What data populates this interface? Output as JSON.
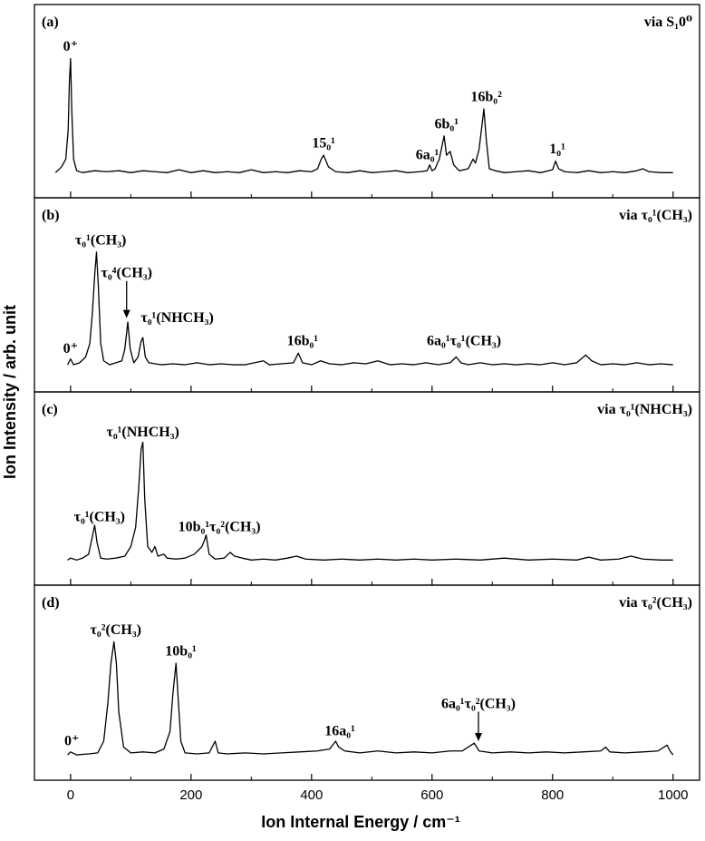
{
  "chart_data": {
    "type": "line",
    "xlabel": "Ion Internal Energy / cm⁻¹",
    "ylabel": "Ion Intensity / arb. unit",
    "xlim": [
      -60,
      1044
    ],
    "xticks": [
      0,
      200,
      400,
      600,
      800,
      1000
    ],
    "xminorticks": [
      100,
      300,
      500,
      700,
      900
    ],
    "color": "#000000",
    "panels": [
      {
        "label": "(a)",
        "note": "via S₁0⁰",
        "ylim": [
          0,
          1
        ],
        "x": [
          -25,
          -15,
          -8,
          -4,
          -2,
          0,
          2,
          5,
          10,
          20,
          40,
          60,
          80,
          100,
          120,
          140,
          160,
          180,
          200,
          220,
          240,
          260,
          280,
          300,
          320,
          340,
          360,
          380,
          400,
          410,
          416,
          420,
          428,
          440,
          460,
          480,
          500,
          520,
          540,
          560,
          580,
          592,
          596,
          600,
          605,
          612,
          616,
          620,
          624,
          630,
          636,
          645,
          660,
          668,
          672,
          678,
          683,
          686,
          690,
          695,
          705,
          720,
          740,
          760,
          780,
          800,
          805,
          810,
          820,
          840,
          860,
          880,
          900,
          920,
          940,
          950,
          960,
          980,
          1000
        ],
        "values": [
          0.13,
          0.16,
          0.2,
          0.35,
          0.6,
          0.72,
          0.45,
          0.2,
          0.14,
          0.13,
          0.14,
          0.135,
          0.14,
          0.13,
          0.14,
          0.135,
          0.13,
          0.145,
          0.13,
          0.14,
          0.13,
          0.135,
          0.13,
          0.145,
          0.13,
          0.135,
          0.13,
          0.14,
          0.135,
          0.15,
          0.2,
          0.22,
          0.16,
          0.135,
          0.13,
          0.14,
          0.13,
          0.135,
          0.14,
          0.13,
          0.135,
          0.14,
          0.17,
          0.14,
          0.15,
          0.2,
          0.26,
          0.32,
          0.22,
          0.24,
          0.17,
          0.14,
          0.15,
          0.2,
          0.18,
          0.25,
          0.38,
          0.46,
          0.3,
          0.15,
          0.14,
          0.13,
          0.135,
          0.14,
          0.13,
          0.145,
          0.19,
          0.15,
          0.135,
          0.13,
          0.14,
          0.13,
          0.135,
          0.13,
          0.14,
          0.15,
          0.135,
          0.13,
          0.13
        ],
        "annotations": [
          {
            "text": "0⁺",
            "x": 0,
            "y": 0.76
          },
          {
            "text": "15₀¹",
            "x": 420,
            "y": 0.26
          },
          {
            "text": "6a₀¹",
            "x": 592,
            "y": 0.2
          },
          {
            "text": "6b₀¹",
            "x": 624,
            "y": 0.36
          },
          {
            "text": "16b₀²",
            "x": 690,
            "y": 0.5
          },
          {
            "text": "1₀¹",
            "x": 808,
            "y": 0.23
          }
        ]
      },
      {
        "label": "(b)",
        "note": "via τ₀¹(CH₃)",
        "ylim": [
          0,
          1
        ],
        "x": [
          -5,
          0,
          5,
          15,
          25,
          32,
          36,
          40,
          43,
          46,
          50,
          55,
          65,
          75,
          85,
          90,
          95,
          99,
          105,
          112,
          117,
          120,
          124,
          130,
          150,
          170,
          190,
          210,
          230,
          250,
          270,
          290,
          320,
          330,
          350,
          370,
          378,
          385,
          400,
          415,
          430,
          450,
          470,
          490,
          510,
          530,
          550,
          570,
          590,
          610,
          630,
          640,
          648,
          660,
          680,
          700,
          720,
          740,
          760,
          780,
          800,
          820,
          840,
          855,
          865,
          880,
          900,
          920,
          940,
          960,
          980,
          1000
        ],
        "values": [
          0.14,
          0.17,
          0.14,
          0.15,
          0.18,
          0.25,
          0.4,
          0.6,
          0.72,
          0.55,
          0.25,
          0.16,
          0.14,
          0.15,
          0.16,
          0.22,
          0.36,
          0.22,
          0.15,
          0.18,
          0.26,
          0.28,
          0.18,
          0.15,
          0.14,
          0.145,
          0.14,
          0.15,
          0.14,
          0.145,
          0.14,
          0.14,
          0.16,
          0.14,
          0.145,
          0.15,
          0.2,
          0.15,
          0.14,
          0.16,
          0.145,
          0.14,
          0.15,
          0.145,
          0.16,
          0.14,
          0.145,
          0.14,
          0.15,
          0.14,
          0.15,
          0.18,
          0.15,
          0.14,
          0.15,
          0.14,
          0.145,
          0.14,
          0.145,
          0.14,
          0.15,
          0.14,
          0.15,
          0.19,
          0.16,
          0.14,
          0.145,
          0.14,
          0.15,
          0.14,
          0.145,
          0.14
        ],
        "annotations": [
          {
            "text": "τ₀¹(CH₃)",
            "x": 50,
            "y": 0.76
          },
          {
            "text": "τ₀⁴(CH₃)",
            "x": 93,
            "y": 0.59,
            "arrow_to": 0.38
          },
          {
            "text": "τ₀¹(NHCH₃)",
            "x": 177,
            "y": 0.36
          },
          {
            "text": "0⁺",
            "x": 0,
            "y": 0.2
          },
          {
            "text": "16b₀¹",
            "x": 385,
            "y": 0.24
          },
          {
            "text": "6a₀¹τ₀¹(CH₃)",
            "x": 653,
            "y": 0.24
          }
        ]
      },
      {
        "label": "(c)",
        "note": "via τ₀¹(NHCH₃)",
        "ylim": [
          0,
          1
        ],
        "x": [
          -5,
          0,
          10,
          20,
          30,
          36,
          40,
          44,
          50,
          60,
          75,
          90,
          100,
          108,
          113,
          117,
          120,
          123,
          128,
          135,
          140,
          145,
          155,
          160,
          175,
          190,
          205,
          212,
          218,
          222,
          225,
          230,
          240,
          255,
          265,
          272,
          285,
          300,
          320,
          340,
          360,
          375,
          390,
          420,
          450,
          480,
          510,
          540,
          570,
          600,
          640,
          680,
          720,
          760,
          800,
          840,
          860,
          880,
          910,
          930,
          950,
          980,
          1000
        ],
        "values": [
          0.13,
          0.14,
          0.13,
          0.14,
          0.16,
          0.25,
          0.31,
          0.22,
          0.14,
          0.135,
          0.14,
          0.15,
          0.2,
          0.3,
          0.5,
          0.7,
          0.74,
          0.45,
          0.2,
          0.17,
          0.2,
          0.15,
          0.16,
          0.14,
          0.135,
          0.14,
          0.16,
          0.18,
          0.2,
          0.23,
          0.26,
          0.16,
          0.135,
          0.14,
          0.17,
          0.15,
          0.14,
          0.13,
          0.135,
          0.13,
          0.14,
          0.15,
          0.135,
          0.13,
          0.135,
          0.13,
          0.135,
          0.13,
          0.135,
          0.13,
          0.135,
          0.13,
          0.14,
          0.13,
          0.135,
          0.13,
          0.145,
          0.13,
          0.135,
          0.15,
          0.135,
          0.13,
          0.13
        ],
        "annotations": [
          {
            "text": "τ₀¹(NHCH₃)",
            "x": 120,
            "y": 0.77
          },
          {
            "text": "τ₀¹(CH₃)",
            "x": 48,
            "y": 0.33
          },
          {
            "text": "10b₀¹τ₀²(CH₃)",
            "x": 247,
            "y": 0.28
          }
        ]
      },
      {
        "label": "(d)",
        "note": "via τ₀²(CH₃)",
        "ylim": [
          0,
          1
        ],
        "x": [
          -5,
          0,
          10,
          30,
          45,
          55,
          62,
          67,
          72,
          76,
          80,
          88,
          100,
          120,
          140,
          155,
          165,
          170,
          175,
          178,
          183,
          190,
          210,
          230,
          240,
          245,
          260,
          290,
          320,
          350,
          380,
          410,
          430,
          440,
          445,
          455,
          480,
          510,
          540,
          570,
          600,
          630,
          650,
          660,
          670,
          678,
          700,
          730,
          760,
          790,
          820,
          850,
          880,
          888,
          895,
          920,
          950,
          975,
          990,
          995,
          1000
        ],
        "values": [
          0.13,
          0.145,
          0.13,
          0.135,
          0.14,
          0.2,
          0.4,
          0.6,
          0.71,
          0.6,
          0.35,
          0.17,
          0.14,
          0.145,
          0.14,
          0.16,
          0.25,
          0.45,
          0.6,
          0.45,
          0.2,
          0.14,
          0.135,
          0.14,
          0.2,
          0.14,
          0.135,
          0.14,
          0.135,
          0.14,
          0.145,
          0.15,
          0.16,
          0.2,
          0.17,
          0.15,
          0.14,
          0.15,
          0.14,
          0.145,
          0.14,
          0.15,
          0.15,
          0.17,
          0.19,
          0.15,
          0.14,
          0.145,
          0.14,
          0.145,
          0.14,
          0.145,
          0.15,
          0.17,
          0.145,
          0.14,
          0.145,
          0.15,
          0.18,
          0.15,
          0.13
        ],
        "annotations": [
          {
            "text": "τ₀²(CH₃)",
            "x": 75,
            "y": 0.75
          },
          {
            "text": "10b₀¹",
            "x": 183,
            "y": 0.64
          },
          {
            "text": "0⁺",
            "x": 2,
            "y": 0.18
          },
          {
            "text": "16a₀¹",
            "x": 447,
            "y": 0.23
          },
          {
            "text": "6a₀¹τ₀²(CH₃)",
            "x": 677,
            "y": 0.37,
            "arrow_to": 0.2
          }
        ]
      }
    ]
  }
}
